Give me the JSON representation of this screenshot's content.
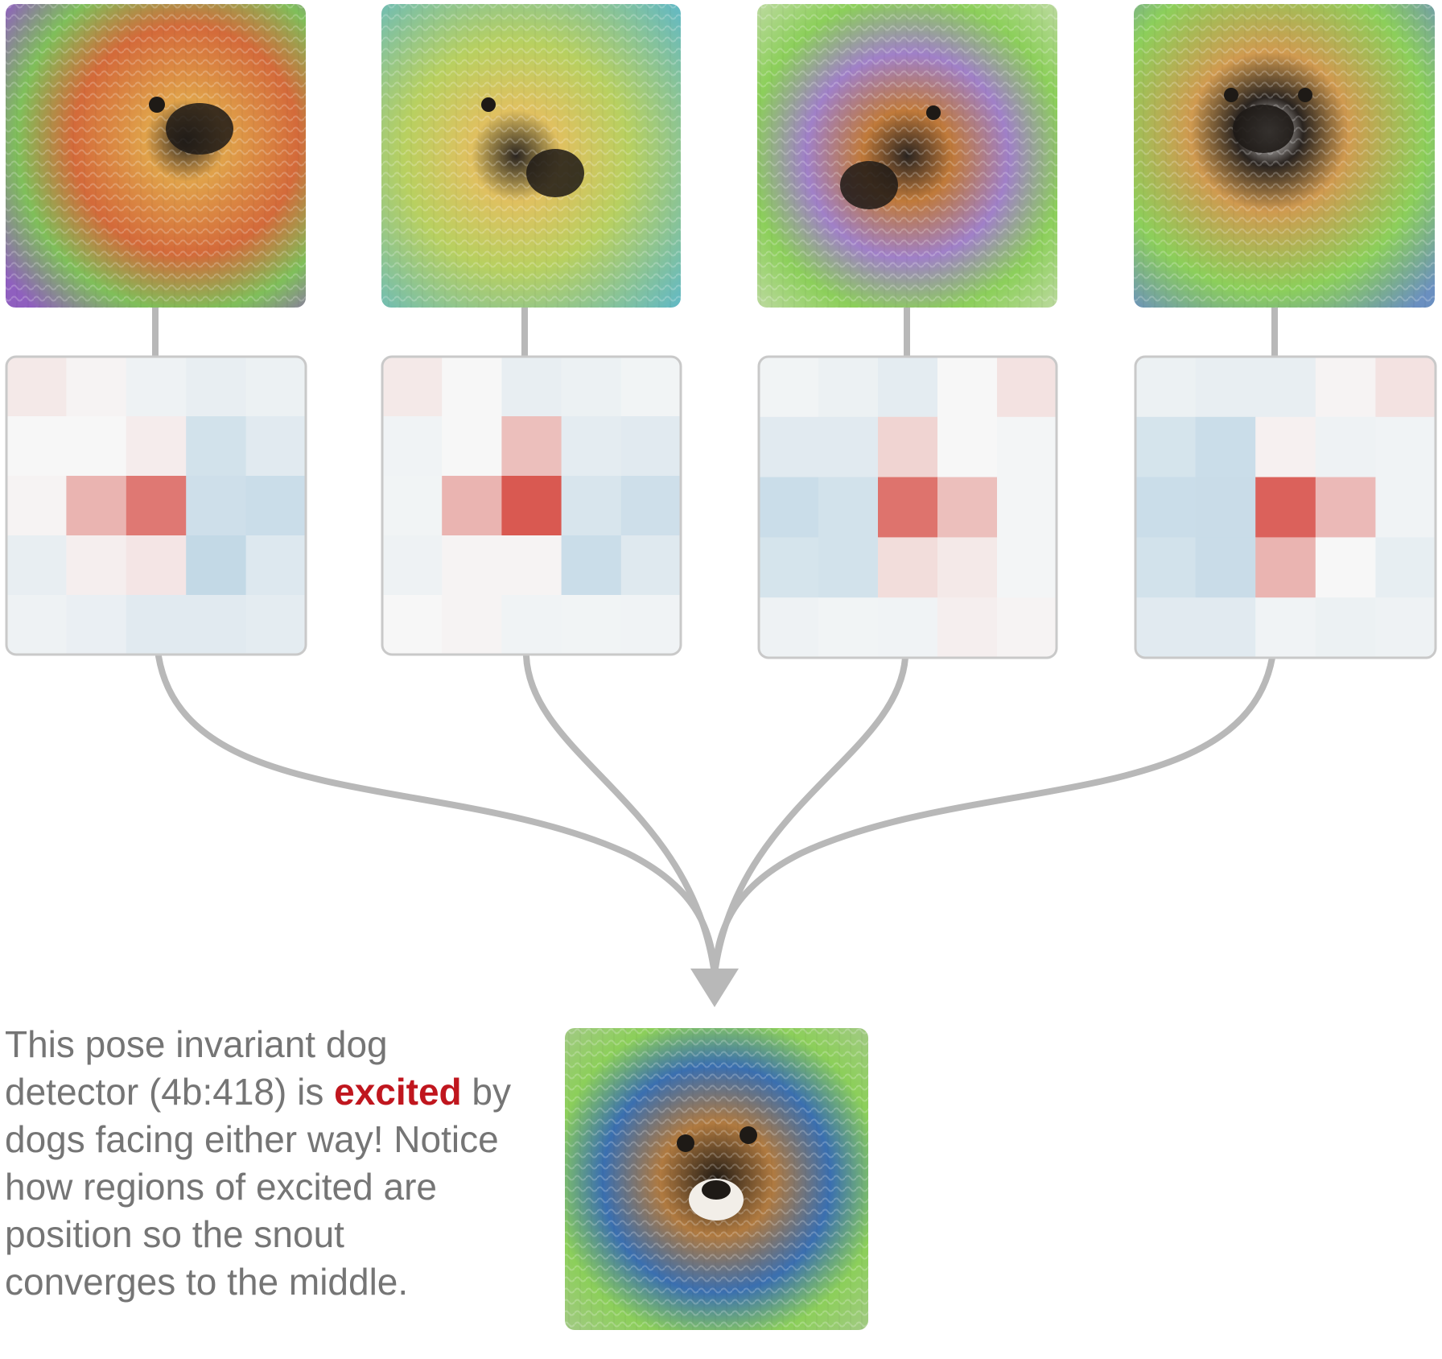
{
  "figure": {
    "caption": {
      "part1": "This pose invariant dog detector (4b:418) is ",
      "emphasis": "excited",
      "part2": " by dogs facing either way! Notice how regions of excited are position so the snout converges to the middle."
    },
    "colors": {
      "connector": "#b8b8b8",
      "heatmap_border": "#c9c9c9",
      "emphasis_text": "#c0161e",
      "caption_text": "#757575",
      "positive": "#d6473f",
      "neutral": "#f7f7f7",
      "negative": "#acccdf"
    },
    "heatmap_scale": "diverging red-white-blue, -1 (blue) to 1 (red)",
    "panels": [
      {
        "image_alt": "feature visualization: dog facing right, swirling fur, green and purple background",
        "image_palette": [
          "#7fbf5a",
          "#e0a24a",
          "#8f5fbf",
          "#2f2a22"
        ],
        "activation_grid": [
          [
            0.08,
            0.02,
            -0.12,
            -0.2,
            -0.15
          ],
          [
            0.0,
            0.0,
            0.06,
            -0.5,
            -0.3
          ],
          [
            0.02,
            0.38,
            0.72,
            -0.55,
            -0.6
          ],
          [
            -0.2,
            0.05,
            0.1,
            -0.7,
            -0.35
          ],
          [
            -0.12,
            -0.18,
            -0.3,
            -0.3,
            -0.25
          ]
        ]
      },
      {
        "image_alt": "feature visualization: dog snout pointing down-left, teal and yellow swirls",
        "image_palette": [
          "#5fb8c8",
          "#b8d060",
          "#e0c060",
          "#2a2420"
        ],
        "activation_grid": [
          [
            0.08,
            0.0,
            -0.2,
            -0.15,
            -0.08
          ],
          [
            -0.1,
            0.0,
            0.32,
            -0.25,
            -0.3
          ],
          [
            -0.08,
            0.38,
            0.9,
            -0.42,
            -0.55
          ],
          [
            -0.12,
            0.02,
            0.02,
            -0.6,
            -0.32
          ],
          [
            0.0,
            0.02,
            -0.1,
            -0.08,
            -0.1
          ]
        ]
      },
      {
        "image_alt": "feature visualization: dog snout pointing down-left, green grid background",
        "image_palette": [
          "#8ccf5a",
          "#c07a3a",
          "#a080c8",
          "#2a2420"
        ],
        "activation_grid": [
          [
            -0.08,
            -0.15,
            -0.25,
            0.0,
            0.12
          ],
          [
            -0.3,
            -0.3,
            0.2,
            0.0,
            -0.05
          ],
          [
            -0.6,
            -0.5,
            0.75,
            0.32,
            -0.05
          ],
          [
            -0.45,
            -0.5,
            0.15,
            0.08,
            -0.05
          ],
          [
            -0.12,
            -0.08,
            -0.1,
            0.05,
            0.02
          ]
        ]
      },
      {
        "image_alt": "feature visualization: dog facing forward-left, green and brown fur",
        "image_palette": [
          "#8ccf5a",
          "#d09a50",
          "#ffffff",
          "#2a2420"
        ],
        "activation_grid": [
          [
            -0.15,
            -0.2,
            -0.2,
            0.02,
            0.12
          ],
          [
            -0.45,
            -0.6,
            0.04,
            -0.12,
            -0.1
          ],
          [
            -0.6,
            -0.62,
            0.85,
            0.35,
            -0.1
          ],
          [
            -0.5,
            -0.62,
            0.38,
            0.0,
            -0.22
          ],
          [
            -0.3,
            -0.3,
            -0.1,
            -0.15,
            -0.12
          ]
        ]
      }
    ],
    "result": {
      "image_alt": "combined feature visualization: front-facing shaggy dog, green background",
      "image_palette": [
        "#8ccf5a",
        "#b07a40",
        "#3a6fb0",
        "#201a14"
      ]
    }
  }
}
